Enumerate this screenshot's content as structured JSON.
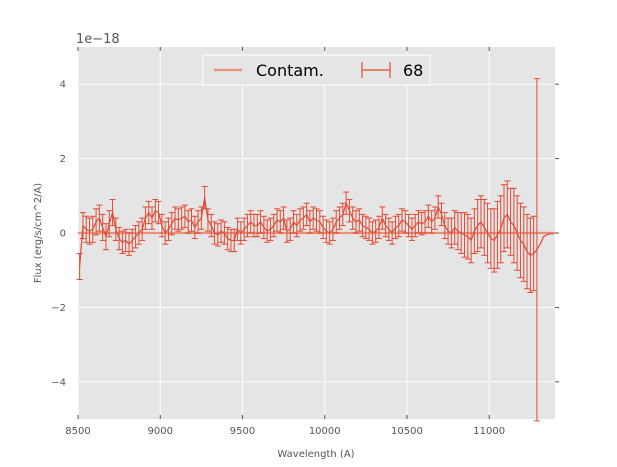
{
  "chart_data": {
    "type": "line",
    "title": "",
    "xlabel": "Wavelength (A)",
    "ylabel": "Flux (erg/s/cm^2/A)",
    "y_offset_label": "1e−18",
    "y_scale_exponent": -18,
    "xlim": [
      8500,
      11400
    ],
    "ylim": [
      -5,
      5
    ],
    "x_ticks": [
      8500,
      9000,
      9500,
      10000,
      10500,
      11000
    ],
    "x_tick_labels": [
      "8500",
      "9000",
      "9500",
      "10000",
      "10500",
      "11000"
    ],
    "y_ticks": [
      -4,
      -2,
      0,
      2,
      4
    ],
    "y_tick_labels": [
      "−4",
      "−2",
      "0",
      "2",
      "4"
    ],
    "grid": true,
    "background": "#e5e5e5",
    "legend": {
      "placement": "top-center",
      "columns": 2
    },
    "series": [
      {
        "name": "Contam.",
        "style": "line",
        "color": "#e8907a",
        "x": [
          8500,
          11400
        ],
        "y": [
          0.0,
          0.0
        ]
      },
      {
        "name": "68",
        "style": "errorbar",
        "color": "#e24a33",
        "x": [
          8510,
          8530,
          8550,
          8570,
          8590,
          8610,
          8630,
          8650,
          8670,
          8690,
          8710,
          8730,
          8750,
          8770,
          8790,
          8810,
          8830,
          8850,
          8870,
          8890,
          8910,
          8930,
          8950,
          8970,
          8990,
          9010,
          9030,
          9050,
          9070,
          9090,
          9110,
          9130,
          9150,
          9170,
          9190,
          9210,
          9230,
          9250,
          9270,
          9290,
          9310,
          9330,
          9350,
          9370,
          9390,
          9410,
          9430,
          9450,
          9470,
          9490,
          9510,
          9530,
          9550,
          9570,
          9590,
          9610,
          9630,
          9650,
          9670,
          9690,
          9710,
          9730,
          9750,
          9770,
          9790,
          9810,
          9830,
          9850,
          9870,
          9890,
          9910,
          9930,
          9950,
          9970,
          9990,
          10010,
          10030,
          10050,
          10070,
          10090,
          10110,
          10130,
          10150,
          10170,
          10190,
          10210,
          10230,
          10250,
          10270,
          10290,
          10310,
          10330,
          10350,
          10370,
          10390,
          10410,
          10430,
          10450,
          10470,
          10490,
          10510,
          10530,
          10550,
          10570,
          10590,
          10610,
          10630,
          10650,
          10670,
          10690,
          10710,
          10730,
          10750,
          10770,
          10790,
          10810,
          10830,
          10850,
          10870,
          10890,
          10910,
          10930,
          10950,
          10970,
          10990,
          11010,
          11030,
          11050,
          11070,
          11090,
          11110,
          11130,
          11150,
          11170,
          11190,
          11210,
          11230,
          11250,
          11270,
          11290,
          11310,
          11330,
          11350,
          11370,
          11390
        ],
        "y": [
          -0.9,
          0.2,
          0.1,
          0.05,
          0.1,
          0.3,
          0.4,
          0.15,
          -0.1,
          0.25,
          0.55,
          0.1,
          -0.15,
          -0.25,
          -0.2,
          -0.3,
          -0.2,
          -0.1,
          0.0,
          0.1,
          0.4,
          0.55,
          0.4,
          0.6,
          0.55,
          0.2,
          0.0,
          0.1,
          0.25,
          0.4,
          0.35,
          0.4,
          0.45,
          0.3,
          0.35,
          0.15,
          0.3,
          0.4,
          0.95,
          0.35,
          0.2,
          0.0,
          -0.05,
          0.05,
          0.0,
          -0.15,
          -0.2,
          -0.2,
          0.1,
          0.0,
          0.1,
          0.2,
          0.3,
          0.2,
          0.2,
          0.3,
          0.15,
          0.05,
          0.1,
          0.2,
          0.35,
          0.3,
          0.4,
          0.05,
          0.1,
          0.3,
          0.2,
          0.35,
          0.4,
          0.5,
          0.3,
          0.4,
          0.35,
          0.3,
          0.15,
          0.05,
          0.0,
          0.1,
          0.3,
          0.4,
          0.5,
          0.8,
          0.6,
          0.4,
          0.3,
          0.35,
          0.2,
          0.15,
          0.1,
          0.0,
          0.05,
          0.15,
          0.4,
          0.2,
          0.1,
          0.0,
          0.15,
          0.2,
          0.35,
          0.3,
          0.2,
          0.1,
          0.2,
          0.3,
          0.25,
          0.3,
          0.45,
          0.3,
          0.4,
          0.7,
          0.5,
          0.2,
          0.05,
          0.0,
          0.15,
          0.05,
          0.0,
          -0.05,
          -0.1,
          -0.2,
          0.05,
          0.2,
          0.3,
          0.15,
          0.0,
          -0.15,
          -0.2,
          -0.05,
          0.1,
          0.4,
          0.5,
          0.3,
          0.2,
          0.0,
          -0.2,
          -0.3,
          -0.5,
          -0.6,
          -0.55,
          -0.45,
          -0.3,
          -0.1,
          -0.05,
          -0.02,
          -0.02
        ],
        "yerr": [
          0.35,
          0.35,
          0.35,
          0.35,
          0.35,
          0.35,
          0.35,
          0.35,
          0.35,
          0.35,
          0.35,
          0.3,
          0.3,
          0.3,
          0.3,
          0.3,
          0.3,
          0.3,
          0.3,
          0.3,
          0.3,
          0.3,
          0.3,
          0.3,
          0.3,
          0.3,
          0.3,
          0.3,
          0.3,
          0.3,
          0.3,
          0.3,
          0.3,
          0.3,
          0.3,
          0.3,
          0.3,
          0.3,
          0.3,
          0.3,
          0.3,
          0.3,
          0.3,
          0.3,
          0.3,
          0.3,
          0.3,
          0.3,
          0.3,
          0.3,
          0.3,
          0.3,
          0.3,
          0.3,
          0.3,
          0.3,
          0.3,
          0.3,
          0.3,
          0.3,
          0.3,
          0.3,
          0.3,
          0.3,
          0.3,
          0.3,
          0.3,
          0.3,
          0.3,
          0.3,
          0.3,
          0.3,
          0.3,
          0.3,
          0.3,
          0.3,
          0.3,
          0.3,
          0.3,
          0.3,
          0.3,
          0.3,
          0.3,
          0.3,
          0.3,
          0.3,
          0.3,
          0.3,
          0.3,
          0.3,
          0.3,
          0.3,
          0.3,
          0.3,
          0.3,
          0.3,
          0.3,
          0.3,
          0.3,
          0.3,
          0.3,
          0.3,
          0.3,
          0.3,
          0.3,
          0.3,
          0.3,
          0.3,
          0.3,
          0.3,
          0.3,
          0.35,
          0.35,
          0.4,
          0.45,
          0.5,
          0.55,
          0.6,
          0.6,
          0.6,
          0.6,
          0.7,
          0.7,
          0.75,
          0.8,
          0.8,
          0.85,
          0.9,
          0.9,
          0.9,
          0.9,
          0.9,
          1.0,
          1.0,
          1.0,
          1.0,
          1.0,
          1.0,
          1.0,
          4.6,
          0.0,
          0.0,
          0.0,
          0.0,
          0.0
        ]
      }
    ]
  }
}
